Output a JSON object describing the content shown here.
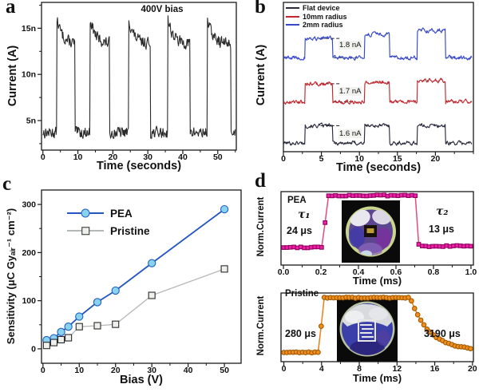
{
  "panels": {
    "a": {
      "label": "a"
    },
    "b": {
      "label": "b"
    },
    "c": {
      "label": "c"
    },
    "d": {
      "label": "d"
    }
  },
  "chart_data": [
    {
      "id": "a",
      "type": "line",
      "panel": "a",
      "annotation": "400V bias",
      "xlabel": "Time (seconds)",
      "ylabel": "Current (A)",
      "xlim": [
        -0.4,
        55.3
      ],
      "xticks": [
        0,
        10,
        20,
        30,
        40,
        50
      ],
      "xminor": 5,
      "ylim": [
        1.8,
        17.8
      ],
      "yticks": [
        {
          "v": 5,
          "label": "5n"
        },
        {
          "v": 10,
          "label": "10n"
        },
        {
          "v": 15,
          "label": "15n"
        }
      ],
      "yminor": 2.5,
      "series": [
        {
          "name": "current at 400V bias",
          "color": "#2b2b2b",
          "width": 1.1,
          "wave": {
            "rises": [
              4,
              13.5,
              24.5,
              35.7,
              47
            ],
            "falls": [
              9.2,
              19,
              30.7,
              42,
              53.8
            ],
            "low": 3.7,
            "high": 13.3,
            "settle": 13.3,
            "peak": 16.1,
            "tau": 1.5,
            "noise": 0.5,
            "smooth": 0.3,
            "tend": 55.1,
            "dt": 0.13,
            "seed": 13
          }
        }
      ]
    },
    {
      "id": "b",
      "type": "line",
      "panel": "b",
      "xlabel": "Time (seconds)",
      "ylabel": "Current (A)",
      "xlim": [
        0,
        25
      ],
      "xticks": [
        0,
        5,
        10,
        15,
        20
      ],
      "xminor": 2.5,
      "ylim": [
        0,
        11.2
      ],
      "yticks": [],
      "legend": [
        {
          "label": "Flat device",
          "color": "#2b2b3e"
        },
        {
          "label": "10mm radius",
          "color": "#c0282f"
        },
        {
          "label": "2mm radius",
          "color": "#3648c8"
        }
      ],
      "annotations": [
        {
          "text": "1.6 nA",
          "series": 0
        },
        {
          "text": "1.7 nA",
          "series": 1
        },
        {
          "text": "1.8 nA",
          "series": 2
        }
      ],
      "series": [
        {
          "name": "Flat device",
          "color": "#2b2b3e",
          "width": 1.15,
          "wave": {
            "rises": [
              2.8,
              10.7,
              17.6
            ],
            "falls": [
              6.5,
              14.0,
              21.3
            ],
            "low": 0.65,
            "high": 1.95,
            "drift": 0.0,
            "noise": 0.17,
            "smooth": 0.55,
            "tend": 24.8,
            "dt": 0.07,
            "seed": 101
          }
        },
        {
          "name": "10mm radius",
          "color": "#c0282f",
          "width": 1.15,
          "wave": {
            "rises": [
              2.8,
              10.7,
              17.6
            ],
            "falls": [
              6.5,
              14.0,
              21.3
            ],
            "low": 3.75,
            "high": 5.1,
            "drift": 0.13,
            "noise": 0.17,
            "smooth": 0.55,
            "tend": 24.8,
            "dt": 0.07,
            "seed": 202
          }
        },
        {
          "name": "2mm radius",
          "color": "#3648c8",
          "width": 1.15,
          "wave": {
            "rises": [
              2.8,
              10.7,
              17.6
            ],
            "falls": [
              6.5,
              14.0,
              21.3
            ],
            "low": 7.05,
            "high": 8.5,
            "drift": 0.3,
            "noise": 0.17,
            "smooth": 0.55,
            "tend": 24.8,
            "dt": 0.07,
            "seed": 303
          }
        }
      ]
    },
    {
      "id": "c",
      "type": "scatter",
      "panel": "c",
      "xlabel": "Bias (V)",
      "ylabel": "Sensitivity (μC Gyₐᵢᵣ⁻¹ cm⁻²)",
      "xlim": [
        -0.4,
        54.6
      ],
      "xticks": [
        0,
        10,
        20,
        30,
        40,
        50
      ],
      "xminor": 5,
      "ylim": [
        -30,
        330
      ],
      "yticks": [
        {
          "v": 0,
          "label": "0"
        },
        {
          "v": 100,
          "label": "100"
        },
        {
          "v": 200,
          "label": "200"
        },
        {
          "v": 300,
          "label": "300"
        }
      ],
      "yminor": 50,
      "legend": [
        {
          "label": "PEA"
        },
        {
          "label": "Pristine"
        }
      ],
      "series": [
        {
          "name": "PEA",
          "marker": "circle",
          "line_color": "#2356c0",
          "marker_fill": "#8ad3f0",
          "marker_edge": "#1f5fc4",
          "width": 1.8,
          "x": [
            1,
            3,
            5,
            7,
            10,
            15,
            20,
            30,
            50
          ],
          "y": [
            18,
            22,
            35,
            46,
            67,
            97,
            121,
            178,
            290
          ]
        },
        {
          "name": "Pristine",
          "marker": "square",
          "line_color": "#b4b8b6",
          "marker_fill": "#eef0ec",
          "marker_edge": "#2a2a2a",
          "width": 1.3,
          "x": [
            1,
            3,
            5,
            7,
            10,
            15,
            20,
            30,
            50
          ],
          "y": [
            7,
            13,
            19,
            23,
            46,
            48,
            51,
            111,
            166
          ]
        }
      ]
    },
    {
      "id": "d1",
      "type": "pulse",
      "panel": "d",
      "device_label": "PEA",
      "xlabel": "Time (ms)",
      "ylabel": "Norm.Current",
      "tau1_label": "τ₁",
      "tau1_value": "24 μs",
      "tau2_label": "τ₂",
      "tau2_value": "13 μs",
      "xlim": [
        -0.013,
        1.013
      ],
      "xticks": [
        {
          "v": 0,
          "label": "0.0"
        },
        {
          "v": 0.2,
          "label": "0.2"
        },
        {
          "v": 0.4,
          "label": "0.4"
        },
        {
          "v": 0.6,
          "label": "0.6"
        },
        {
          "v": 0.8,
          "label": "0.8"
        },
        {
          "v": 1.0,
          "label": "1.0"
        }
      ],
      "xminor": 0.1,
      "ylim": [
        -0.23,
        1.07
      ],
      "yticks": [],
      "series": [
        {
          "name": "PEA normalized response",
          "marker": "square",
          "msize": 4.6,
          "line_color": "#e64a7e",
          "marker_fill": "#f01fa6",
          "marker_edge": "#8c0060",
          "width": 1.5,
          "pulse": {
            "rise": 0.212,
            "fall": 0.715,
            "low": 0.085,
            "high": 1.0,
            "base": 0.105,
            "fall_tau": 0.002,
            "noise": 0.022,
            "tend": 1.0,
            "dt": 0.0185,
            "seed": 55
          }
        }
      ]
    },
    {
      "id": "d2",
      "type": "pulse",
      "panel": "d",
      "device_label": "Pristine",
      "xlabel": "Time (ms)",
      "ylabel": "Norm.Current",
      "rise_value": "280 μs",
      "fall_value": "3190 μs",
      "xlim": [
        -0.3,
        20.1
      ],
      "xticks": [
        0,
        4,
        8,
        12,
        16,
        20
      ],
      "xminor": 2,
      "ylim": [
        -0.09,
        1.08
      ],
      "yticks": [],
      "series": [
        {
          "name": "Pristine normalized response",
          "marker": "circle",
          "msize": 2.8,
          "line_color": "#ed7d17",
          "marker_fill": "#f08e1f",
          "marker_edge": "#9f5a00",
          "width": 1.5,
          "pulse": {
            "rise": 3.8,
            "fall": 13.4,
            "low": 0.07,
            "high": 1.0,
            "base": 0.1,
            "fall_tau": 2.0,
            "noise": 0.016,
            "tend": 19.9,
            "dt": 0.33,
            "seed": 77
          }
        }
      ]
    }
  ]
}
